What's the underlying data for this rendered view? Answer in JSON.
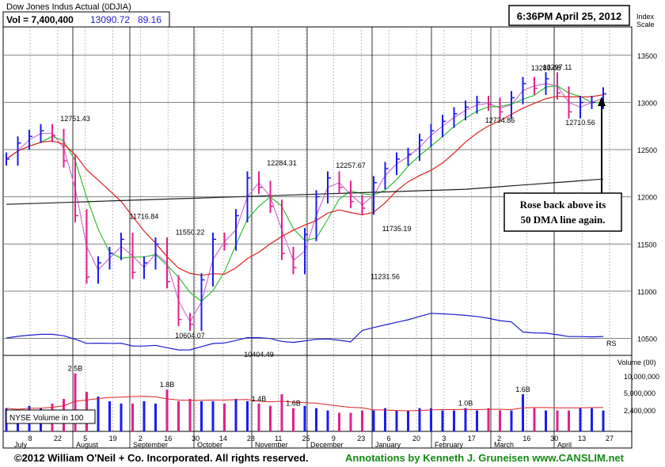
{
  "header": {
    "title": "Dow Jones Indus Actual  (0DJIA)",
    "vol_label": "Vol = 7,400,400",
    "price": "13090.72",
    "change": "89.16",
    "timestamp": "6:36PM April 25, 2012",
    "index_scale_label": "Index\nScale"
  },
  "colors": {
    "up_bar": "#1c1cf0",
    "down_bar": "#e0208c",
    "ma10": "#d070d0",
    "ma21": "#30c030",
    "ma50": "#e02020",
    "ma200": "#202020",
    "rs_line": "#1c1cd0",
    "volume_ma": "#e02020",
    "grid": "#808080",
    "footer_green": "#138a13"
  },
  "chart_data": [
    {
      "type": "candlestick",
      "title": "Dow Jones Indus Actual  (0DJIA)",
      "y_axis_label": "Index Scale",
      "y_ticks": [
        10500,
        11000,
        11500,
        12000,
        12500,
        13000,
        13500
      ],
      "ylim": [
        10320,
        13800
      ],
      "x_tick_labels": [
        "8",
        "22",
        "5",
        "19",
        "2",
        "16",
        "30",
        "14",
        "28",
        "11",
        "25",
        "9",
        "23",
        "6",
        "20",
        "3",
        "17",
        "2",
        "16",
        "30",
        "13",
        "27"
      ],
      "month_labels": [
        "July",
        "August",
        "September",
        "October",
        "November",
        "December",
        "January",
        "February",
        "March",
        "April"
      ],
      "grid": true,
      "price_annotations": [
        {
          "label": "12751.43",
          "value": 12751.43
        },
        {
          "label": "11716.84",
          "value": 11716.84
        },
        {
          "label": "11550.22",
          "value": 11550.22
        },
        {
          "label": "10604.07",
          "value": 10604.07
        },
        {
          "label": "10404.49",
          "value": 10404.49
        },
        {
          "label": "12284.31",
          "value": 12284.31
        },
        {
          "label": "11231.56",
          "value": 11231.56
        },
        {
          "label": "12257.67",
          "value": 12257.67
        },
        {
          "label": "11735.19",
          "value": 11735.19
        },
        {
          "label": "12734.86",
          "value": 12734.86
        },
        {
          "label": "13289.08",
          "value": 13289.08
        },
        {
          "label": "13297.11",
          "value": 13297.11
        },
        {
          "label": "12710.56",
          "value": 12710.56
        }
      ],
      "closes_weekly": [
        12400,
        12570,
        12640,
        12700,
        12650,
        12380,
        11800,
        11150,
        11300,
        11400,
        11550,
        11200,
        11300,
        11500,
        11100,
        10700,
        10650,
        11120,
        11550,
        11500,
        11800,
        12200,
        12100,
        11900,
        11400,
        11250,
        11600,
        12000,
        12200,
        12100,
        11950,
        11880,
        12150,
        12300,
        12400,
        12450,
        12600,
        12700,
        12800,
        12880,
        12950,
        13000,
        12980,
        12900,
        13050,
        13200,
        13150,
        13250,
        13100,
        12900,
        13000,
        13000,
        13090
      ],
      "overlays": [
        "10-day MA",
        "21-day MA",
        "50-day MA",
        "200-day MA",
        "Relative Strength line"
      ],
      "rs_label": "RS",
      "callout": "Rose back above its\n50 DMA line again."
    },
    {
      "type": "bar",
      "title": "NYSE Volume in 100",
      "y_axis_label": "Volume (00)",
      "y_ticks": [
        "10,000,000",
        "5,000,000",
        "2,400,000"
      ],
      "peak_labels": [
        "2.5B",
        "1.8B",
        "1.4B",
        "1.6B",
        "1.0B",
        "1.6B"
      ],
      "values_billions_weekly": [
        1.0,
        0.9,
        1.1,
        1.0,
        1.2,
        1.4,
        2.5,
        1.7,
        1.5,
        1.3,
        1.2,
        1.2,
        1.3,
        1.2,
        1.8,
        1.3,
        1.4,
        1.3,
        1.3,
        1.2,
        1.4,
        1.3,
        1.2,
        1.1,
        1.6,
        1.0,
        1.1,
        1.0,
        0.9,
        0.8,
        0.8,
        0.9,
        0.9,
        1.0,
        0.9,
        0.9,
        1.0,
        1.0,
        0.9,
        0.9,
        1.0,
        0.9,
        1.0,
        0.9,
        0.9,
        1.6,
        1.0,
        0.9,
        0.9,
        0.9,
        1.0,
        1.0,
        0.9
      ]
    }
  ],
  "footer": {
    "copyright": "©2012 William O'Neil + Co. Incorporated. All rights reserved.",
    "annotations_credit": "Annotations by Kenneth J. Gruneisen www.CANSLIM.net"
  }
}
